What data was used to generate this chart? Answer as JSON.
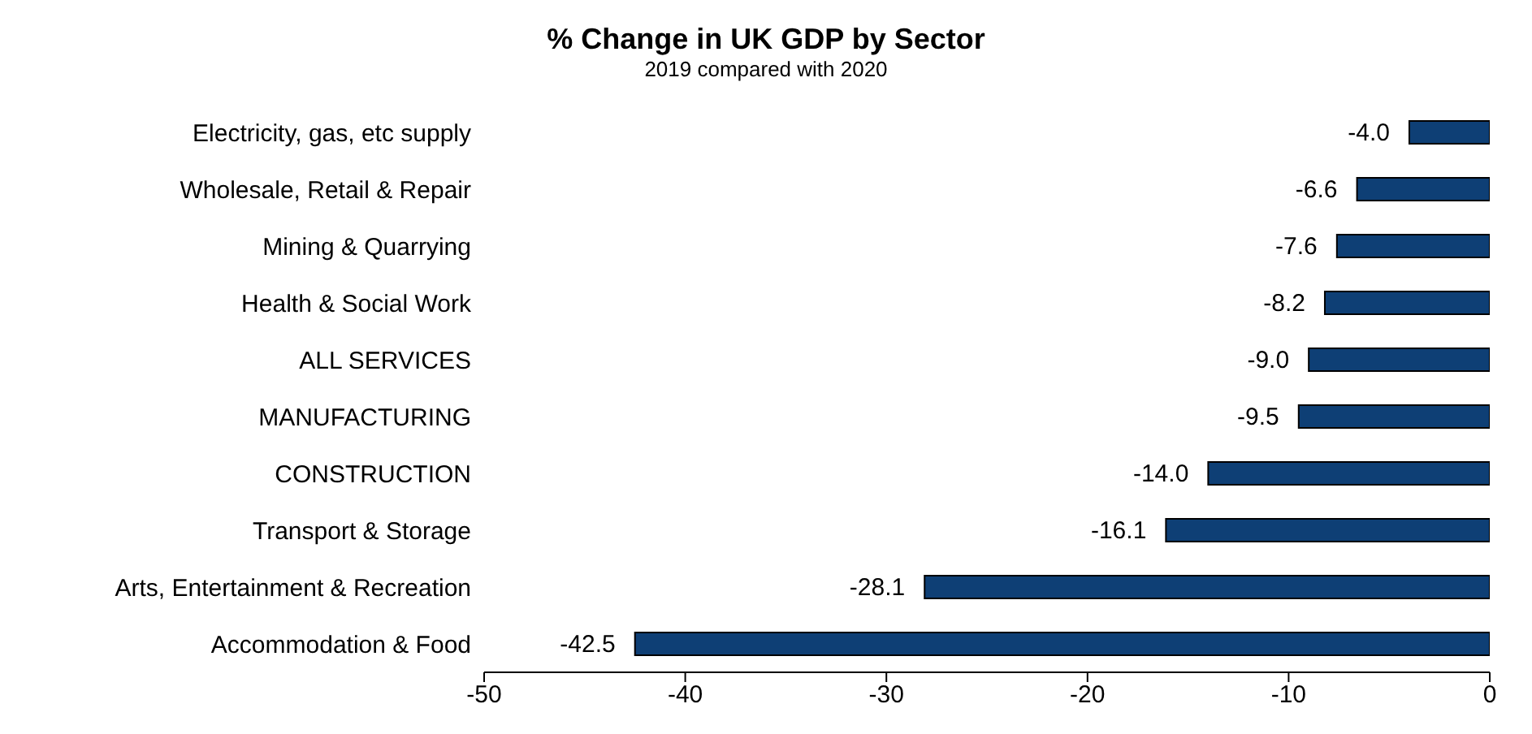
{
  "chart_data": {
    "type": "bar",
    "orientation": "horizontal",
    "title": "% Change in UK GDP by Sector",
    "subtitle": "2019 compared with 2020",
    "categories": [
      "Electricity, gas, etc supply",
      "Wholesale, Retail & Repair",
      "Mining & Quarrying",
      "Health & Social Work",
      "ALL SERVICES",
      "MANUFACTURING",
      "CONSTRUCTION",
      "Transport & Storage",
      "Arts, Entertainment & Recreation",
      "Accommodation & Food"
    ],
    "values": [
      -4.0,
      -6.6,
      -7.6,
      -8.2,
      -9.0,
      -9.5,
      -14.0,
      -16.1,
      -28.1,
      -42.5
    ],
    "value_labels": [
      "-4.0",
      "-6.6",
      "-7.6",
      "-8.2",
      "-9.0",
      "-9.5",
      "-14.0",
      "-16.1",
      "-28.1",
      "-42.5"
    ],
    "color": "#0e3f75",
    "xlim": [
      -50,
      0
    ],
    "xticks": [
      -50,
      -40,
      -30,
      -20,
      -10,
      0
    ]
  }
}
